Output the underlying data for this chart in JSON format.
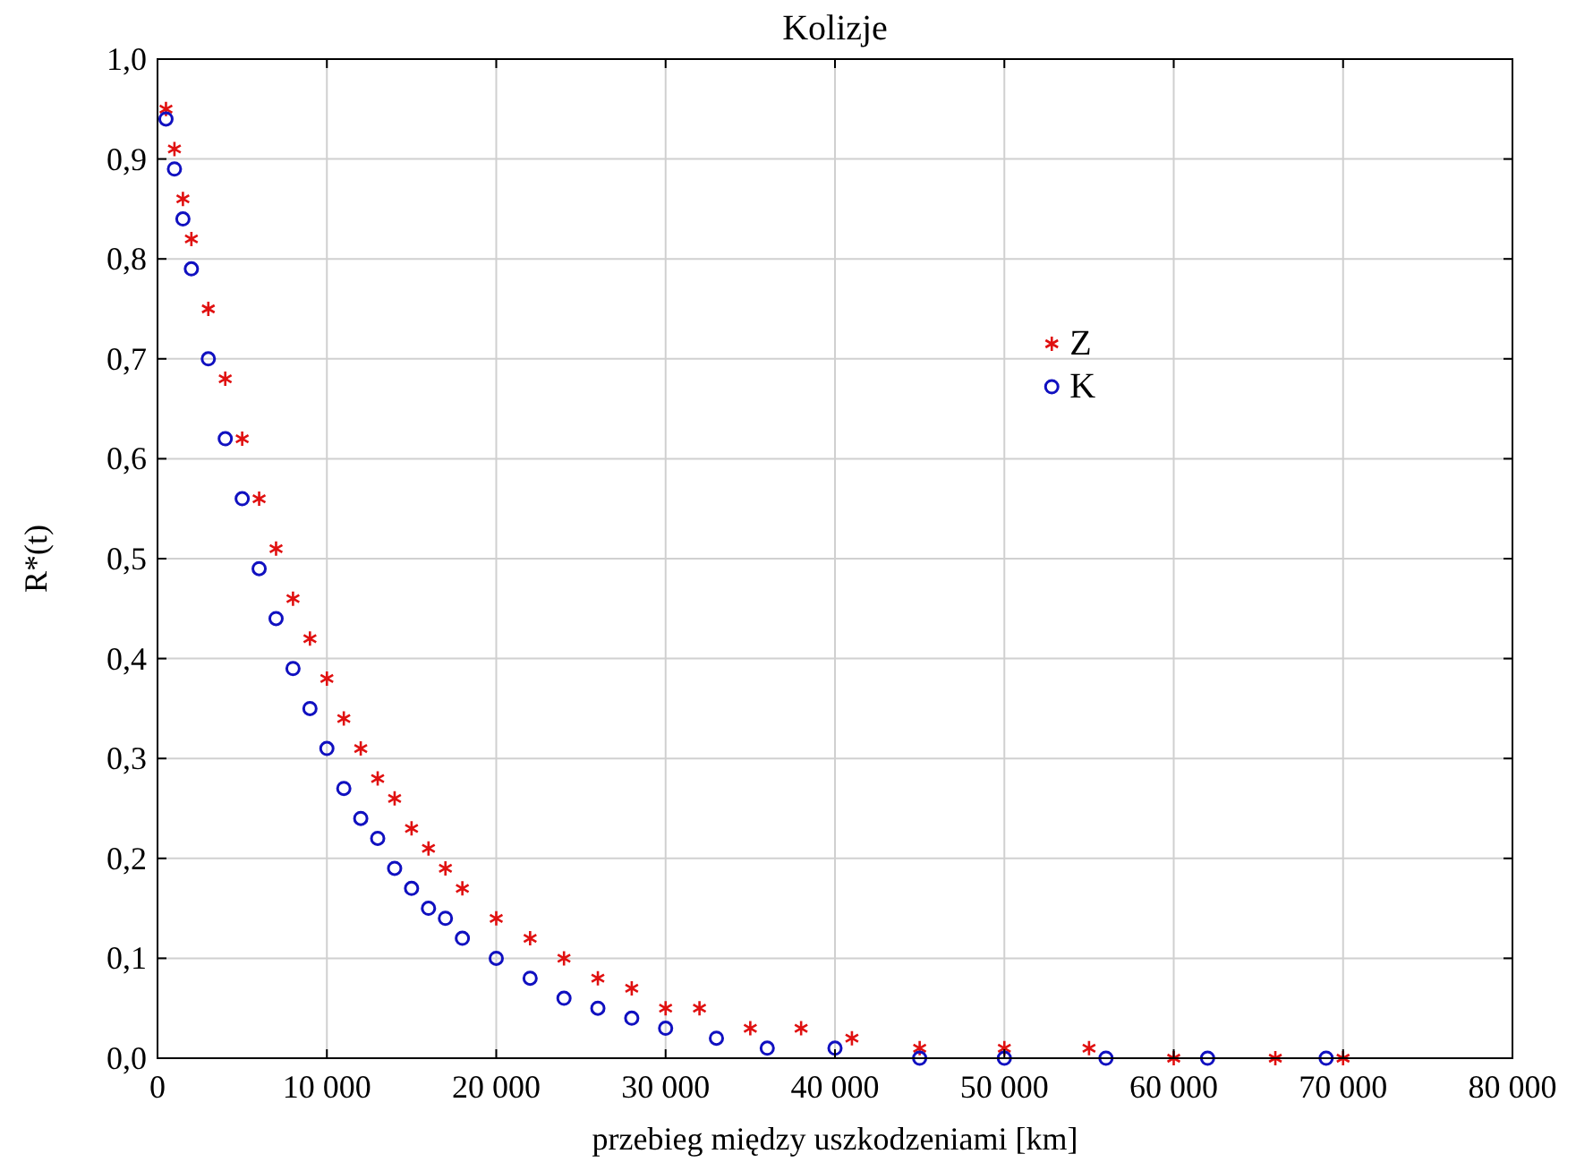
{
  "chart_data": {
    "type": "scatter",
    "title": "Kolizje",
    "xlabel": "przebieg między uszkodzeniami [km]",
    "ylabel": "R*(t)",
    "xlim": [
      0,
      80000
    ],
    "xticks": [
      {
        "value": 0,
        "label": "0"
      },
      {
        "value": 10000,
        "label": "10 000"
      },
      {
        "value": 20000,
        "label": "20 000"
      },
      {
        "value": 30000,
        "label": "30 000"
      },
      {
        "value": 40000,
        "label": "40 000"
      },
      {
        "value": 50000,
        "label": "50 000"
      },
      {
        "value": 60000,
        "label": "60 000"
      },
      {
        "value": 70000,
        "label": "70 000"
      },
      {
        "value": 80000,
        "label": "80 000"
      }
    ],
    "ylim": [
      0,
      1
    ],
    "yticks": [
      {
        "value": 0,
        "label": "0,0"
      },
      {
        "value": 0.1,
        "label": "0,1"
      },
      {
        "value": 0.2,
        "label": "0,2"
      },
      {
        "value": 0.3,
        "label": "0,3"
      },
      {
        "value": 0.4,
        "label": "0,4"
      },
      {
        "value": 0.5,
        "label": "0,5"
      },
      {
        "value": 0.6,
        "label": "0,6"
      },
      {
        "value": 0.7,
        "label": "0,7"
      },
      {
        "value": 0.8,
        "label": "0,8"
      },
      {
        "value": 0.9,
        "label": "0,9"
      },
      {
        "value": 1,
        "label": "1,0"
      }
    ],
    "grid": true,
    "legend": "top right",
    "series": [
      {
        "name": "Z",
        "color": "#e01010",
        "marker": "cross",
        "x": [
          500,
          1000,
          1500,
          2000,
          3000,
          4000,
          5000,
          6000,
          7000,
          8000,
          9000,
          10000,
          11000,
          12000,
          13000,
          14000,
          15000,
          16000,
          17000,
          18000,
          20000,
          22000,
          24000,
          26000,
          28000,
          30000,
          32000,
          35000,
          38000,
          41000,
          45000,
          50000,
          55000,
          60000,
          66000,
          70000
        ],
        "values": [
          0.95,
          0.91,
          0.86,
          0.82,
          0.75,
          0.68,
          0.62,
          0.56,
          0.51,
          0.46,
          0.42,
          0.38,
          0.34,
          0.31,
          0.28,
          0.26,
          0.23,
          0.21,
          0.19,
          0.17,
          0.14,
          0.12,
          0.1,
          0.08,
          0.07,
          0.05,
          0.05,
          0.03,
          0.03,
          0.02,
          0.01,
          0.01,
          0.01,
          0,
          0,
          0
        ]
      },
      {
        "name": "K",
        "color": "#1010c0",
        "marker": "circle",
        "x": [
          500,
          1000,
          1500,
          2000,
          3000,
          4000,
          5000,
          6000,
          7000,
          8000,
          9000,
          10000,
          11000,
          12000,
          13000,
          14000,
          15000,
          16000,
          17000,
          18000,
          20000,
          22000,
          24000,
          26000,
          28000,
          30000,
          33000,
          36000,
          40000,
          45000,
          50000,
          56000,
          62000,
          69000
        ],
        "values": [
          0.94,
          0.89,
          0.84,
          0.79,
          0.7,
          0.62,
          0.56,
          0.49,
          0.44,
          0.39,
          0.35,
          0.31,
          0.27,
          0.24,
          0.22,
          0.19,
          0.17,
          0.15,
          0.14,
          0.12,
          0.1,
          0.08,
          0.06,
          0.05,
          0.04,
          0.03,
          0.02,
          0.01,
          0.01,
          0,
          0,
          0,
          0,
          0
        ]
      }
    ]
  }
}
